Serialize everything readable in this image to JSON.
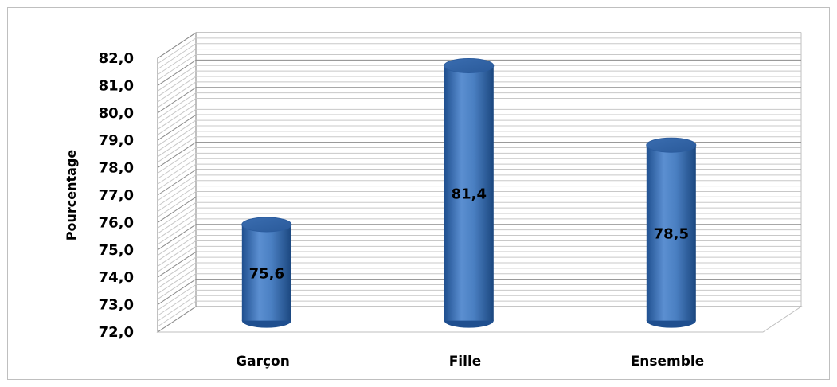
{
  "chart_data": {
    "type": "bar",
    "categories": [
      "Garçon",
      "Fille",
      "Ensemble"
    ],
    "values": [
      75.6,
      81.4,
      78.5
    ],
    "value_labels": [
      "75,6",
      "81,4",
      "78,5"
    ],
    "ylabel": "Pourcentage",
    "ylim": [
      72.0,
      82.0
    ],
    "yticks": [
      "72,0",
      "73,0",
      "74,0",
      "75,0",
      "76,0",
      "77,0",
      "78,0",
      "79,0",
      "80,0",
      "81,0",
      "82,0"
    ],
    "grid": true,
    "legend": "none",
    "style": "3d-cylinder",
    "bar_color": "#3f73b7"
  }
}
